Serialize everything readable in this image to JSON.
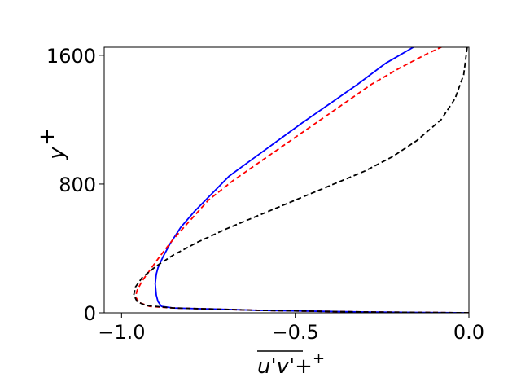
{
  "chart_data": {
    "type": "line",
    "xlabel": "u'v'+",
    "ylabel": "y",
    "ylabel_superscript": "+",
    "xlim": [
      -1.05,
      0.0
    ],
    "ylim": [
      0,
      1650
    ],
    "xticks": [
      -1.0,
      -0.5,
      0.0
    ],
    "xtick_labels": [
      "−1.0",
      "−0.5",
      "0.0"
    ],
    "yticks": [
      0,
      800,
      1600
    ],
    "ytick_labels": [
      "0",
      "800",
      "1600"
    ],
    "grid": false,
    "series": [
      {
        "color": "#0000ff",
        "dash": "solid",
        "x": [
          0.0,
          -0.3,
          -0.6,
          -0.85,
          -0.885,
          -0.895,
          -0.9,
          -0.903,
          -0.9,
          -0.895,
          -0.88,
          -0.86,
          -0.83,
          -0.79,
          -0.74,
          -0.69,
          -0.62,
          -0.55,
          -0.48,
          -0.4,
          -0.32,
          -0.24,
          -0.16,
          -0.08,
          0.0
        ],
        "y": [
          0,
          5,
          15,
          30,
          40,
          70,
          110,
          180,
          240,
          280,
          350,
          430,
          530,
          630,
          740,
          850,
          960,
          1070,
          1180,
          1300,
          1420,
          1550,
          1650,
          1750,
          1850
        ]
      },
      {
        "color": "#ff0000",
        "dash": "dashed",
        "x": [
          0.0,
          -0.3,
          -0.6,
          -0.85,
          -0.92,
          -0.95,
          -0.96,
          -0.955,
          -0.94,
          -0.92,
          -0.89,
          -0.85,
          -0.8,
          -0.75,
          -0.68,
          -0.6,
          -0.52,
          -0.44,
          -0.36,
          -0.28,
          -0.2,
          -0.12,
          -0.08,
          -0.04,
          -0.015,
          0.0
        ],
        "y": [
          0,
          5,
          15,
          30,
          40,
          65,
          100,
          140,
          200,
          260,
          350,
          460,
          580,
          700,
          820,
          940,
          1060,
          1180,
          1300,
          1420,
          1520,
          1610,
          1650,
          1740,
          1810,
          1850
        ]
      },
      {
        "color": "#000000",
        "dash": "dashed",
        "x": [
          0.0,
          -0.3,
          -0.6,
          -0.85,
          -0.93,
          -0.955,
          -0.965,
          -0.96,
          -0.94,
          -0.9,
          -0.85,
          -0.78,
          -0.7,
          -0.6,
          -0.5,
          -0.4,
          -0.3,
          -0.22,
          -0.15,
          -0.08,
          -0.04,
          -0.015,
          -0.005,
          0.0
        ],
        "y": [
          0,
          5,
          15,
          30,
          45,
          70,
          110,
          160,
          220,
          290,
          360,
          440,
          520,
          610,
          700,
          790,
          880,
          970,
          1070,
          1200,
          1330,
          1480,
          1650,
          1850
        ]
      }
    ]
  }
}
